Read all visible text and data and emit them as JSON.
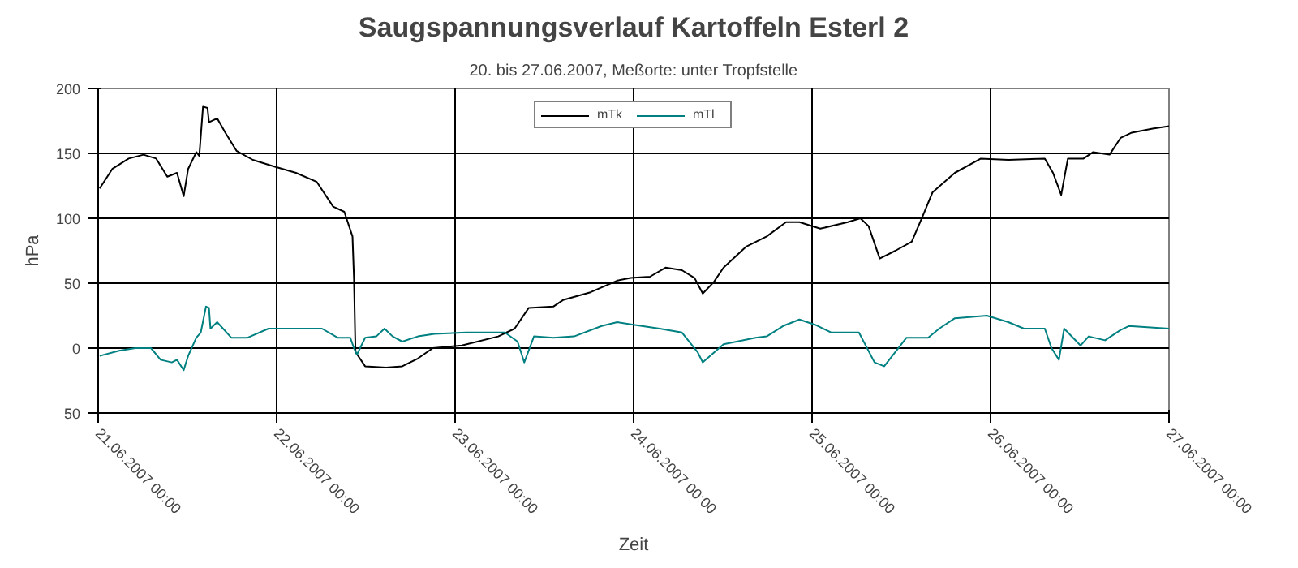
{
  "chart_data": {
    "type": "line",
    "title": "Saugspannungsverlauf Kartoffeln Esterl 2",
    "subtitle": "20. bis 27.06.2007, Meßorte: unter Tropfstelle",
    "xlabel": "Zeit",
    "ylabel": "hPa",
    "xlim": [
      "2007-06-21T00:00",
      "2007-06-27T00:00"
    ],
    "xticks": [
      {
        "value": "2007-06-21T00:00",
        "label": "21.06.2007 00:00"
      },
      {
        "value": "2007-06-22T00:00",
        "label": "22.06.2007 00:00"
      },
      {
        "value": "2007-06-23T00:00",
        "label": "23.06.2007 00:00"
      },
      {
        "value": "2007-06-24T00:00",
        "label": "24.06.2007 00:00"
      },
      {
        "value": "2007-06-25T00:00",
        "label": "25.06.2007 00:00"
      },
      {
        "value": "2007-06-26T00:00",
        "label": "26.06.2007 00:00"
      },
      {
        "value": "2007-06-27T00:00",
        "label": "27.06.2007 00:00"
      }
    ],
    "ylim": [
      -50,
      200
    ],
    "yticks": [
      {
        "value": -50,
        "label": "50"
      },
      0,
      50,
      100,
      150,
      200
    ],
    "grid": true,
    "legend": "top",
    "marker": "none",
    "line_style": "solid",
    "series": [
      {
        "name": "mTk",
        "color": "#000000",
        "x": [
          "2007-06-21T00:12",
          "2007-06-21T01:54",
          "2007-06-21T04:06",
          "2007-06-21T06:06",
          "2007-06-21T07:48",
          "2007-06-21T09:18",
          "2007-06-21T10:36",
          "2007-06-21T11:30",
          "2007-06-21T12:06",
          "2007-06-21T13:12",
          "2007-06-21T13:36",
          "2007-06-21T14:06",
          "2007-06-21T14:42",
          "2007-06-21T14:54",
          "2007-06-21T16:00",
          "2007-06-21T17:06",
          "2007-06-21T18:36",
          "2007-06-21T20:48",
          "2007-06-21T23:36",
          "2007-06-22T02:36",
          "2007-06-22T05:24",
          "2007-06-22T07:36",
          "2007-06-22T09:06",
          "2007-06-22T10:12",
          "2007-06-22T10:24",
          "2007-06-22T10:36",
          "2007-06-22T11:54",
          "2007-06-22T14:42",
          "2007-06-22T16:54",
          "2007-06-22T19:00",
          "2007-06-22T21:00",
          "2007-06-23T00:54",
          "2007-06-23T05:48",
          "2007-06-23T08:00",
          "2007-06-23T09:54",
          "2007-06-23T13:12",
          "2007-06-23T14:30",
          "2007-06-23T18:12",
          "2007-06-23T21:48",
          "2007-06-23T23:36",
          "2007-06-24T02:12",
          "2007-06-24T04:18",
          "2007-06-24T06:30",
          "2007-06-24T08:12",
          "2007-06-24T09:18",
          "2007-06-24T10:48",
          "2007-06-24T12:06",
          "2007-06-24T15:06",
          "2007-06-24T17:54",
          "2007-06-24T20:30",
          "2007-06-24T22:18",
          "2007-06-25T01:06",
          "2007-06-25T04:48",
          "2007-06-25T06:30",
          "2007-06-25T07:36",
          "2007-06-25T09:06",
          "2007-06-25T11:12",
          "2007-06-25T13:24",
          "2007-06-25T14:54",
          "2007-06-25T16:12",
          "2007-06-25T19:12",
          "2007-06-25T22:42",
          "2007-06-26T02:24",
          "2007-06-26T07:18",
          "2007-06-26T08:24",
          "2007-06-26T09:30",
          "2007-06-26T10:24",
          "2007-06-26T12:30",
          "2007-06-26T13:48",
          "2007-06-26T16:00",
          "2007-06-26T17:30",
          "2007-06-26T19:00",
          "2007-06-26T21:48",
          "2007-06-27T00:00"
        ],
        "values": [
          123,
          138,
          146,
          149,
          146,
          132,
          135,
          117,
          138,
          151,
          148,
          186,
          185,
          174,
          177,
          166,
          152,
          145,
          140,
          135,
          128,
          109,
          105,
          86,
          54,
          -3,
          -14,
          -15,
          -14,
          -8,
          0,
          2,
          9,
          15,
          31,
          32,
          37,
          43,
          52,
          54,
          55,
          62,
          60,
          54,
          42,
          51,
          62,
          78,
          86,
          97,
          97,
          92,
          97,
          100,
          94,
          69,
          75,
          82,
          102,
          120,
          135,
          146,
          145,
          146,
          135,
          118,
          146,
          146,
          151,
          149,
          162,
          166,
          169,
          171
        ]
      },
      {
        "name": "mTl",
        "color": "#008080",
        "x": [
          "2007-06-21T00:12",
          "2007-06-21T02:48",
          "2007-06-21T05:00",
          "2007-06-21T07:06",
          "2007-06-21T08:24",
          "2007-06-21T09:54",
          "2007-06-21T10:36",
          "2007-06-21T11:30",
          "2007-06-21T12:06",
          "2007-06-21T13:12",
          "2007-06-21T13:48",
          "2007-06-21T14:30",
          "2007-06-21T14:54",
          "2007-06-21T15:06",
          "2007-06-21T16:00",
          "2007-06-21T17:54",
          "2007-06-21T20:06",
          "2007-06-21T22:54",
          "2007-06-22T02:36",
          "2007-06-22T06:06",
          "2007-06-22T08:12",
          "2007-06-22T09:54",
          "2007-06-22T10:24",
          "2007-06-22T10:48",
          "2007-06-22T11:54",
          "2007-06-22T13:24",
          "2007-06-22T14:30",
          "2007-06-22T15:36",
          "2007-06-22T16:54",
          "2007-06-22T19:00",
          "2007-06-22T21:12",
          "2007-06-23T01:30",
          "2007-06-23T06:42",
          "2007-06-23T08:24",
          "2007-06-23T09:18",
          "2007-06-23T10:36",
          "2007-06-23T13:12",
          "2007-06-23T16:00",
          "2007-06-23T19:42",
          "2007-06-23T21:48",
          "2007-06-24T00:00",
          "2007-06-24T03:30",
          "2007-06-24T06:30",
          "2007-06-24T08:36",
          "2007-06-24T09:18",
          "2007-06-24T12:06",
          "2007-06-24T16:24",
          "2007-06-24T17:54",
          "2007-06-24T20:06",
          "2007-06-24T22:18",
          "2007-06-25T00:24",
          "2007-06-25T02:36",
          "2007-06-25T06:18",
          "2007-06-25T08:24",
          "2007-06-25T09:42",
          "2007-06-25T12:42",
          "2007-06-25T15:36",
          "2007-06-25T17:06",
          "2007-06-25T19:12",
          "2007-06-25T23:30",
          "2007-06-26T02:24",
          "2007-06-26T04:30",
          "2007-06-26T07:18",
          "2007-06-26T08:12",
          "2007-06-26T09:12",
          "2007-06-26T09:54",
          "2007-06-26T12:06",
          "2007-06-26T13:12",
          "2007-06-26T15:24",
          "2007-06-26T17:30",
          "2007-06-26T18:36",
          "2007-06-27T00:00"
        ],
        "values": [
          -6,
          -2,
          0,
          0,
          -9,
          -11,
          -9,
          -17,
          -6,
          8,
          12,
          32,
          31,
          15,
          20,
          8,
          8,
          15,
          15,
          15,
          8,
          8,
          0,
          -5,
          8,
          9,
          15,
          9,
          5,
          9,
          11,
          12,
          12,
          5,
          -11,
          9,
          8,
          9,
          17,
          20,
          18,
          15,
          12,
          -3,
          -11,
          3,
          8,
          9,
          17,
          22,
          18,
          12,
          12,
          -11,
          -14,
          8,
          8,
          15,
          23,
          25,
          20,
          15,
          15,
          0,
          -9,
          15,
          2,
          9,
          6,
          14,
          17,
          15
        ]
      }
    ]
  }
}
